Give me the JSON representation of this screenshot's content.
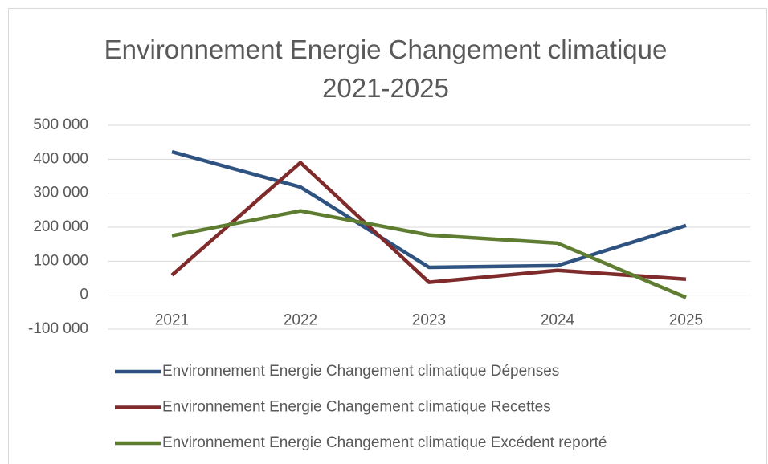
{
  "chart_data": {
    "type": "line",
    "title": "Environnement Energie Changement climatique 2021-2025",
    "categories": [
      "2021",
      "2022",
      "2023",
      "2024",
      "2025"
    ],
    "series": [
      {
        "name": "Environnement Energie Changement climatique Dépenses",
        "color": "#2f5381",
        "values": [
          422000,
          318000,
          82000,
          87000,
          205000
        ]
      },
      {
        "name": "Environnement Energie Changement climatique Recettes",
        "color": "#7f2b2c",
        "values": [
          59000,
          390000,
          38000,
          73000,
          47000
        ]
      },
      {
        "name": "Environnement Energie Changement climatique Excédent reporté",
        "color": "#5f7d31",
        "values": [
          175000,
          248000,
          177000,
          153000,
          -7000
        ]
      }
    ],
    "ylim": [
      -100000,
      500000
    ],
    "yticks": [
      {
        "value": -100000,
        "label": "-100 000"
      },
      0,
      {
        "value": 100000,
        "label": "100 000"
      },
      {
        "value": 200000,
        "label": "200 000"
      },
      {
        "value": 300000,
        "label": "300 000"
      },
      {
        "value": 400000,
        "label": "400 000"
      },
      {
        "value": 500000,
        "label": "500 000"
      }
    ],
    "grid": true,
    "legend": "bottom"
  }
}
